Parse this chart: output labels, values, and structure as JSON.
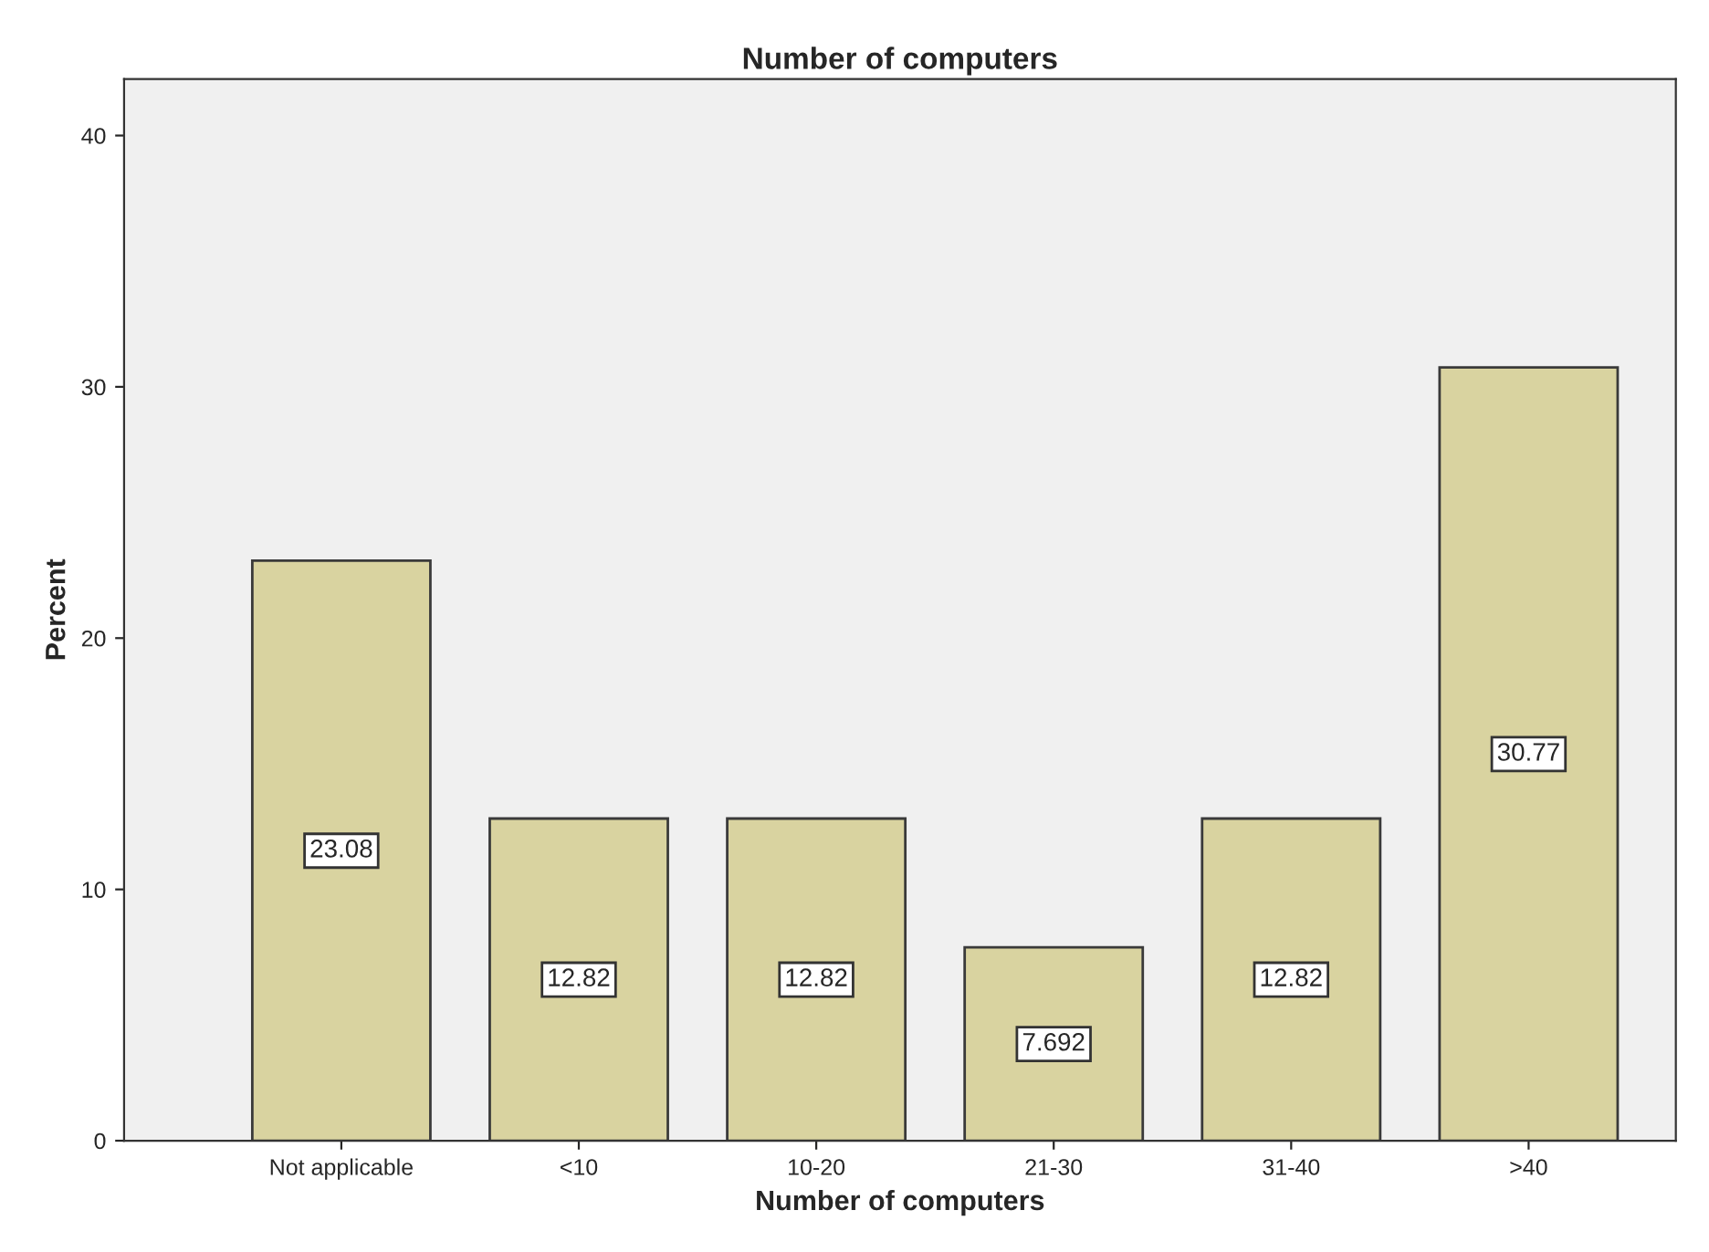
{
  "chart_data": {
    "type": "bar",
    "title": "Number of computers",
    "xlabel": "Number of computers",
    "ylabel": "Percent",
    "categories": [
      "Not applicable",
      "<10",
      "10-20",
      "21-30",
      "31-40",
      ">40"
    ],
    "values": [
      23.08,
      12.82,
      12.82,
      7.692,
      12.82,
      30.77
    ],
    "color": "#d9d3a0",
    "ylim": [
      0,
      42.25
    ],
    "yticks": [
      0,
      10,
      20,
      30,
      40
    ],
    "grid": false,
    "data_labels": true
  }
}
